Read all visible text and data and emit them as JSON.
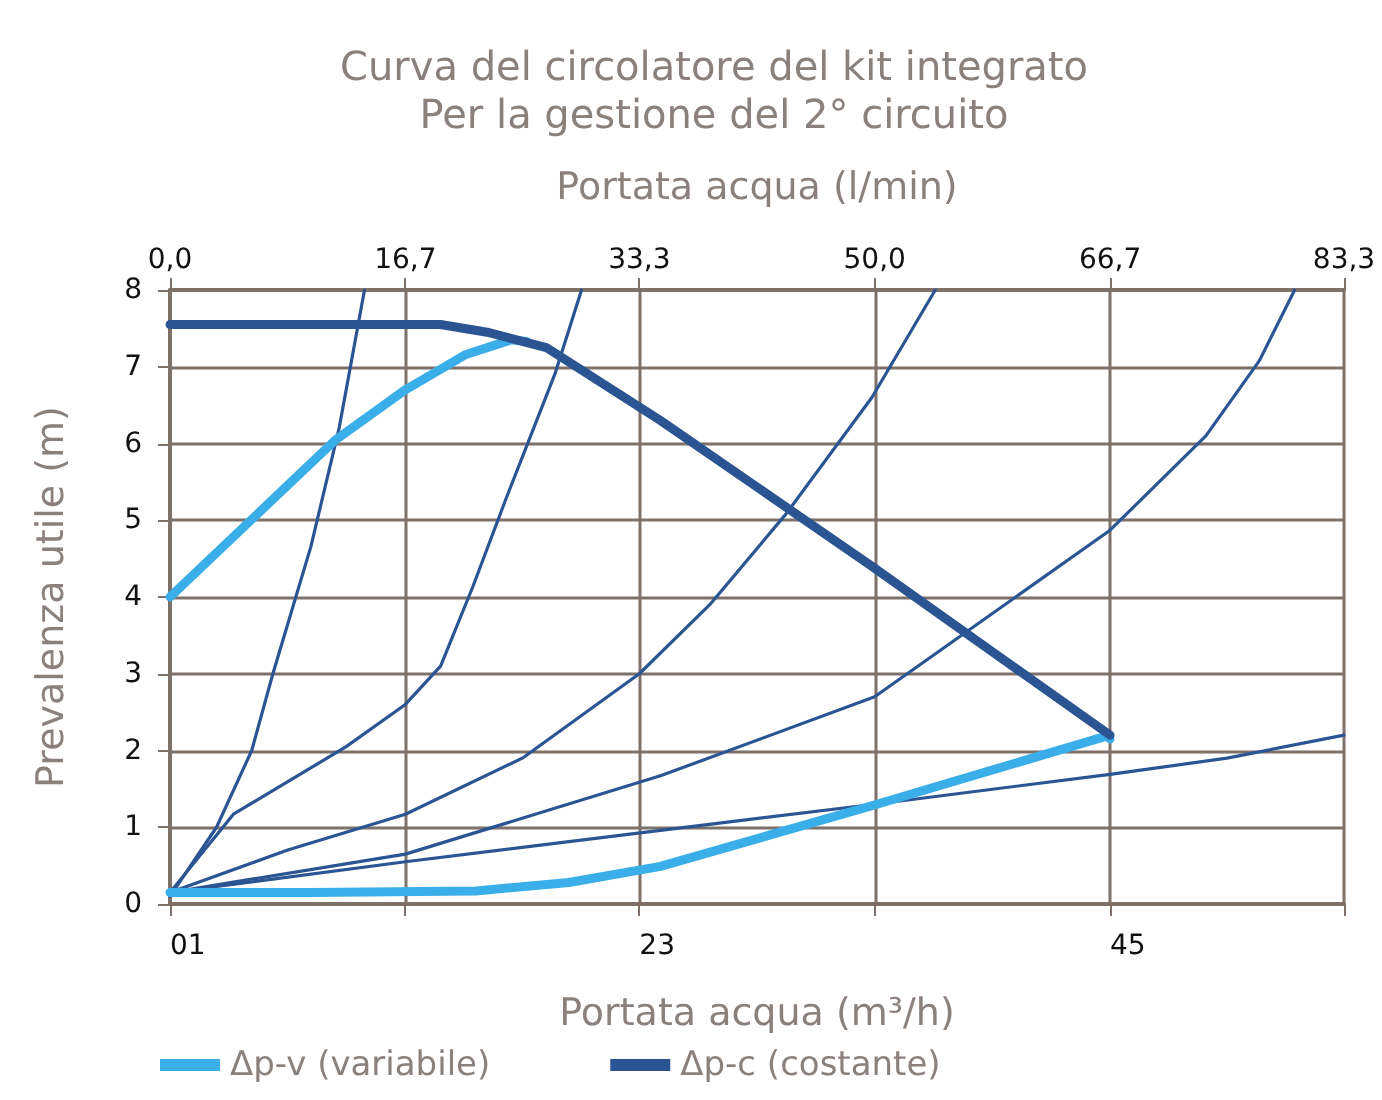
{
  "chart_data": {
    "type": "line",
    "title": "Curva del circolatore del kit integrato",
    "subtitle": "Per la gestione del 2° circuito",
    "xlabel": "Portata acqua (l/min)",
    "x2label": "Portata acqua (m³/h)",
    "ylabel": "Prevalenza utile (m)",
    "xlim": [
      0,
      83.3
    ],
    "xticks": [
      {
        "value": 0,
        "label": "0,0"
      },
      {
        "value": 16.7,
        "label": "16,7"
      },
      {
        "value": 33.3,
        "label": "33,3"
      },
      {
        "value": 50,
        "label": "50,0"
      },
      {
        "value": 66.7,
        "label": "66,7"
      },
      {
        "value": 83.3,
        "label": "83,3"
      }
    ],
    "annotations": [
      "01",
      "23",
      "45"
    ],
    "ylim": [
      0,
      8
    ],
    "yticks": [
      0,
      1,
      2,
      3,
      4,
      5,
      6,
      7,
      8
    ],
    "grid": true,
    "legend": "bottom left",
    "marker": "none",
    "series": [
      {
        "x": [
          0,
          3.3,
          5.8,
          7.3,
          10.0,
          12.0,
          13.8
        ],
        "values": [
          0.1,
          1.0,
          2.0,
          3.0,
          4.66,
          6.2,
          8.0
        ],
        "color": "#2b5592"
      },
      {
        "x": [
          0,
          4.5,
          12.5,
          16.7,
          19.2,
          21.5,
          23.8,
          27.3,
          29.2
        ],
        "values": [
          0.15,
          1.17,
          2.05,
          2.6,
          3.1,
          4.14,
          5.26,
          6.9,
          8.0
        ],
        "color": "#2b5592"
      },
      {
        "x": [
          0,
          8.3,
          16.7,
          25.0,
          33.3,
          38.3,
          43.7,
          49.8,
          54.3
        ],
        "values": [
          0.15,
          0.7,
          1.17,
          1.9,
          3.0,
          3.9,
          5.08,
          6.6,
          8.0
        ],
        "color": "#2b5592"
      },
      {
        "x": [
          0,
          16.7,
          34.8,
          50.0,
          66.7,
          73.5,
          77.3,
          79.8
        ],
        "values": [
          0.15,
          0.65,
          1.67,
          2.7,
          4.87,
          6.1,
          7.08,
          8.0
        ],
        "color": "#2b5592"
      },
      {
        "x": [
          0,
          16.7,
          34.8,
          50.0,
          66.7,
          75.0,
          83.3
        ],
        "values": [
          0.15,
          0.55,
          0.96,
          1.3,
          1.69,
          1.9,
          2.2
        ],
        "color": "#2b5592"
      },
      {
        "name": "Δp-v (variabile)",
        "color": "#3aaee8",
        "x": [
          0,
          11.7,
          16.7,
          21.0,
          24.2,
          25.3,
          null,
          0,
          10.0,
          21.7,
          28.3,
          34.8,
          49.8,
          66.5,
          66.7
        ],
        "values": [
          4.0,
          6.04,
          6.7,
          7.16,
          7.35,
          7.33,
          null,
          0.15,
          0.15,
          0.17,
          0.28,
          0.49,
          1.28,
          2.19,
          2.15
        ]
      },
      {
        "name": "Δp-c (costante)",
        "color": "#2b5592",
        "x": [
          0,
          19.2,
          22.5,
          26.7,
          34.8,
          49.8,
          66.7
        ],
        "values": [
          7.55,
          7.55,
          7.45,
          7.25,
          6.3,
          4.4,
          2.2
        ]
      }
    ]
  }
}
